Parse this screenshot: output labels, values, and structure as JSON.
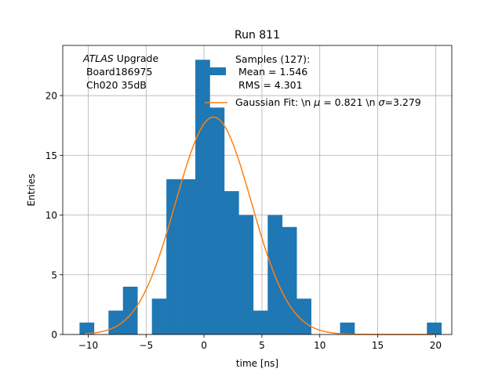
{
  "chart_data": {
    "type": "bar",
    "title": "Run 811",
    "xlabel": "time [ns]",
    "ylabel": "Entries",
    "xlim": [
      -12.2,
      21.4
    ],
    "ylim": [
      0,
      24.2
    ],
    "xticks": [
      -10,
      -5,
      0,
      5,
      10,
      15,
      20
    ],
    "yticks": [
      0,
      5,
      10,
      15,
      20
    ],
    "grid": true,
    "bin_edges": [
      -10.75,
      -9.5,
      -8.25,
      -7.0,
      -5.75,
      -4.5,
      -3.25,
      -2.0,
      -0.75,
      0.5,
      1.75,
      3.0,
      4.25,
      5.5,
      6.75,
      8.0,
      9.25,
      10.5,
      11.75,
      13.0,
      14.25,
      15.5,
      16.75,
      18.0,
      19.25,
      20.5
    ],
    "counts": [
      1,
      0,
      2,
      4,
      0,
      3,
      13,
      13,
      23,
      19,
      12,
      10,
      2,
      10,
      9,
      3,
      0,
      0,
      1,
      0,
      0,
      0,
      0,
      0,
      1
    ],
    "hist_color": "#1f77b4",
    "fit": {
      "name": "Gaussian Fit: \\n $\\mu$ = 0.821 \\n $\\sigma$=3.279",
      "mu": 0.821,
      "sigma": 3.279,
      "amplitude": 18.2,
      "x_range": [
        -10.3,
        19.7
      ],
      "color": "#ff7f0e"
    },
    "annotation": {
      "line1_italic": "ATLAS",
      "line1_rest": " Upgrade",
      "line2": " Board186975",
      "line3": " Ch020 35dB"
    },
    "legend": {
      "placement": "top-right",
      "hist_line1": "Samples (127):",
      "hist_line2": " Mean = 1.546",
      "hist_line3": " RMS = 4.301",
      "fit_prefix": "Gaussian Fit: \\n ",
      "fit_mu_symbol": "μ",
      "fit_middle": " = 0.821 \\n ",
      "fit_sigma_symbol": "σ",
      "fit_suffix": "=3.279"
    }
  }
}
